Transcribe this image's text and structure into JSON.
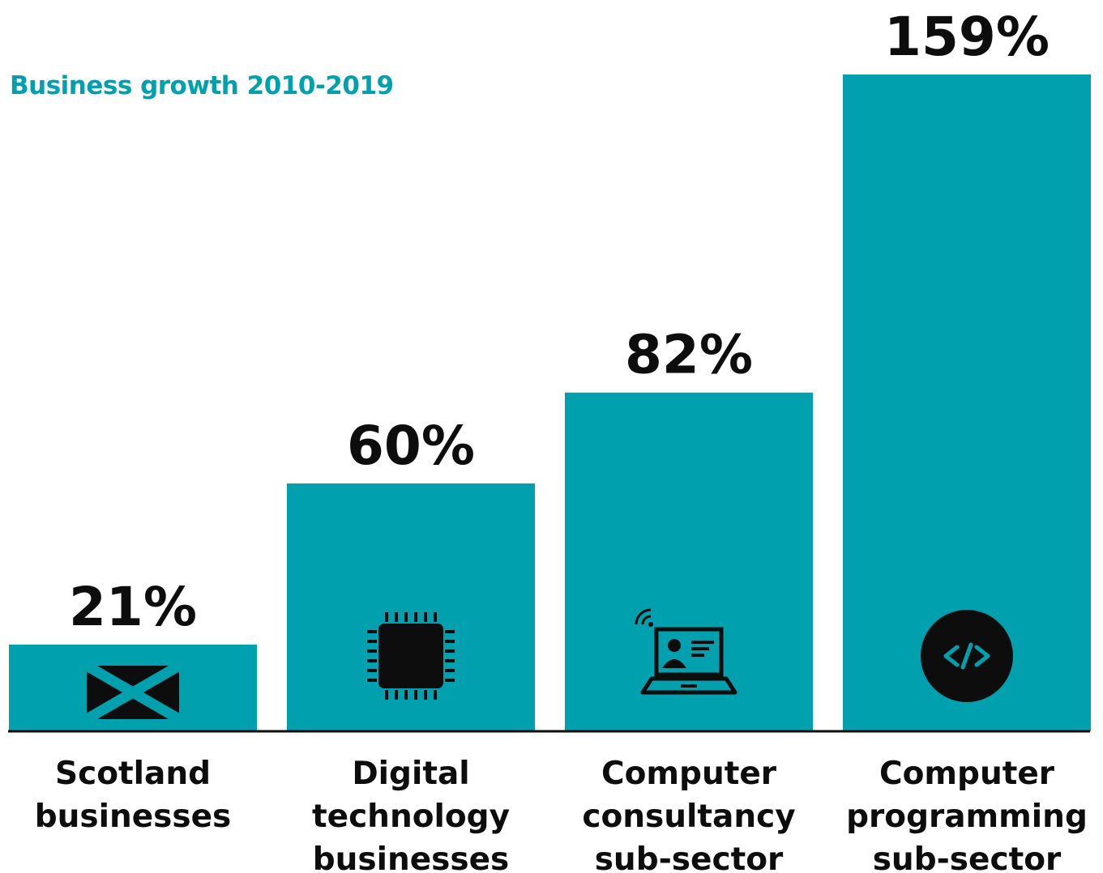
{
  "chart_data": {
    "type": "bar",
    "title": "Business growth 2010-2019",
    "categories": [
      [
        "Scotland",
        "businesses"
      ],
      [
        "Digital",
        "technology",
        "businesses"
      ],
      [
        "Computer",
        "consultancy",
        "sub-sector"
      ],
      [
        "Computer",
        "programming",
        "sub-sector"
      ]
    ],
    "values": [
      21,
      60,
      82,
      159
    ],
    "value_labels": [
      "21%",
      "60%",
      "82%",
      "159%"
    ],
    "icons": [
      "scotland-flag-icon",
      "microchip-icon",
      "laptop-consultant-icon",
      "code-icon"
    ],
    "grid": false,
    "legend": "none"
  },
  "colors": {
    "bar": "#00a0ae",
    "title": "#00a0ae",
    "text": "#0d0d0d",
    "axis": "#0d0d0d",
    "icon": "#0d0d0d"
  }
}
